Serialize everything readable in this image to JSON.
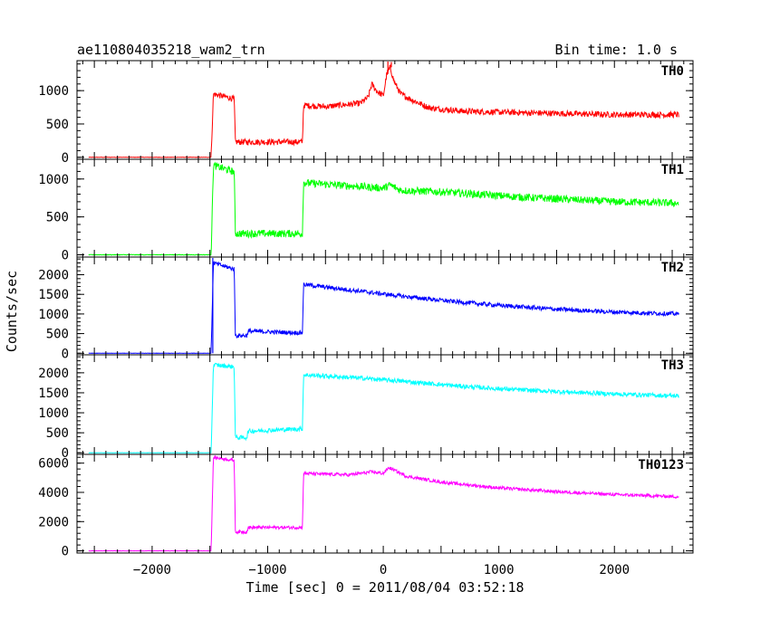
{
  "header": {
    "obs_id": "ae110804035218_wam2_trn",
    "bin_time": "Bin time: 1.0 s"
  },
  "axes": {
    "xlabel": "Time [sec] 0 = 2011/08/04 03:52:18",
    "ylabel": "Counts/sec"
  },
  "chart_data": {
    "type": "line",
    "xlim": [
      -2650,
      2680
    ],
    "xticks": [
      -2000,
      -1000,
      0,
      1000,
      2000
    ],
    "xtick_labels": [
      "−2000",
      "−1000",
      "0",
      "1000",
      "2000"
    ],
    "grid": false,
    "panels": [
      {
        "name": "TH0",
        "color": "#ff0000",
        "ylim": [
          -30,
          1450
        ],
        "yticks": [
          0,
          500,
          1000
        ],
        "ytick_labels": [
          "0",
          "500",
          "1000"
        ],
        "noise": 45,
        "points": [
          [
            -2550,
            0
          ],
          [
            -1490,
            0
          ],
          [
            -1470,
            950
          ],
          [
            -1300,
            880
          ],
          [
            -1290,
            880
          ],
          [
            -1280,
            230
          ],
          [
            -700,
            230
          ],
          [
            -690,
            780
          ],
          [
            -500,
            760
          ],
          [
            -200,
            810
          ],
          [
            -130,
            900
          ],
          [
            -100,
            1100
          ],
          [
            -60,
            1000
          ],
          [
            0,
            920
          ],
          [
            30,
            1250
          ],
          [
            60,
            1350
          ],
          [
            90,
            1150
          ],
          [
            150,
            950
          ],
          [
            250,
            860
          ],
          [
            400,
            740
          ],
          [
            700,
            690
          ],
          [
            1200,
            670
          ],
          [
            2000,
            640
          ],
          [
            2560,
            640
          ]
        ],
        "spikes": [
          [
            40,
            1450
          ],
          [
            70,
            1430
          ]
        ]
      },
      {
        "name": "TH1",
        "color": "#00ff00",
        "ylim": [
          -30,
          1260
        ],
        "yticks": [
          0,
          500,
          1000
        ],
        "ytick_labels": [
          "0",
          "500",
          "1000"
        ],
        "noise": 50,
        "points": [
          [
            -2550,
            0
          ],
          [
            -1490,
            0
          ],
          [
            -1470,
            1180
          ],
          [
            -1300,
            1100
          ],
          [
            -1290,
            1100
          ],
          [
            -1280,
            280
          ],
          [
            -700,
            280
          ],
          [
            -690,
            950
          ],
          [
            -200,
            900
          ],
          [
            0,
            880
          ],
          [
            60,
            920
          ],
          [
            150,
            850
          ],
          [
            500,
            830
          ],
          [
            1200,
            760
          ],
          [
            2000,
            700
          ],
          [
            2560,
            680
          ]
        ],
        "spikes": []
      },
      {
        "name": "TH2",
        "color": "#0000ff",
        "ylim": [
          -40,
          2450
        ],
        "yticks": [
          0,
          500,
          1000,
          1500,
          2000
        ],
        "ytick_labels": [
          "0",
          "500",
          "1000",
          "1500",
          "2000"
        ],
        "noise": 55,
        "points": [
          [
            -2550,
            0
          ],
          [
            -1490,
            0
          ],
          [
            -1470,
            2300
          ],
          [
            -1300,
            2150
          ],
          [
            -1290,
            2150
          ],
          [
            -1280,
            450
          ],
          [
            -1180,
            450
          ],
          [
            -1170,
            560
          ],
          [
            -700,
            520
          ],
          [
            -690,
            1750
          ],
          [
            -200,
            1580
          ],
          [
            200,
            1440
          ],
          [
            600,
            1320
          ],
          [
            1000,
            1220
          ],
          [
            1500,
            1120
          ],
          [
            2000,
            1050
          ],
          [
            2560,
            1000
          ]
        ],
        "spikes": [
          [
            -1475,
            2450
          ]
        ]
      },
      {
        "name": "TH3",
        "color": "#00ffff",
        "ylim": [
          -40,
          2450
        ],
        "yticks": [
          0,
          500,
          1000,
          1500,
          2000
        ],
        "ytick_labels": [
          "0",
          "500",
          "1000",
          "1500",
          "2000"
        ],
        "noise": 55,
        "points": [
          [
            -2550,
            0
          ],
          [
            -1490,
            0
          ],
          [
            -1470,
            2200
          ],
          [
            -1300,
            2150
          ],
          [
            -1290,
            2150
          ],
          [
            -1280,
            380
          ],
          [
            -1180,
            380
          ],
          [
            -1170,
            540
          ],
          [
            -700,
            600
          ],
          [
            -690,
            1950
          ],
          [
            -200,
            1870
          ],
          [
            200,
            1780
          ],
          [
            600,
            1680
          ],
          [
            1000,
            1600
          ],
          [
            1500,
            1530
          ],
          [
            2000,
            1470
          ],
          [
            2560,
            1420
          ]
        ],
        "spikes": []
      },
      {
        "name": "TH0123",
        "color": "#ff00ff",
        "ylim": [
          -150,
          6600
        ],
        "yticks": [
          0,
          2000,
          4000,
          6000
        ],
        "ytick_labels": [
          "0",
          "2000",
          "4000",
          "6000"
        ],
        "noise": 110,
        "points": [
          [
            -2550,
            0
          ],
          [
            -1490,
            0
          ],
          [
            -1470,
            6400
          ],
          [
            -1300,
            6200
          ],
          [
            -1290,
            6200
          ],
          [
            -1280,
            1300
          ],
          [
            -1180,
            1300
          ],
          [
            -1170,
            1600
          ],
          [
            -700,
            1600
          ],
          [
            -690,
            5300
          ],
          [
            -300,
            5200
          ],
          [
            -100,
            5400
          ],
          [
            0,
            5300
          ],
          [
            50,
            5700
          ],
          [
            100,
            5500
          ],
          [
            200,
            5100
          ],
          [
            500,
            4700
          ],
          [
            1000,
            4300
          ],
          [
            1500,
            4050
          ],
          [
            2000,
            3850
          ],
          [
            2560,
            3700
          ]
        ],
        "spikes": []
      }
    ]
  }
}
